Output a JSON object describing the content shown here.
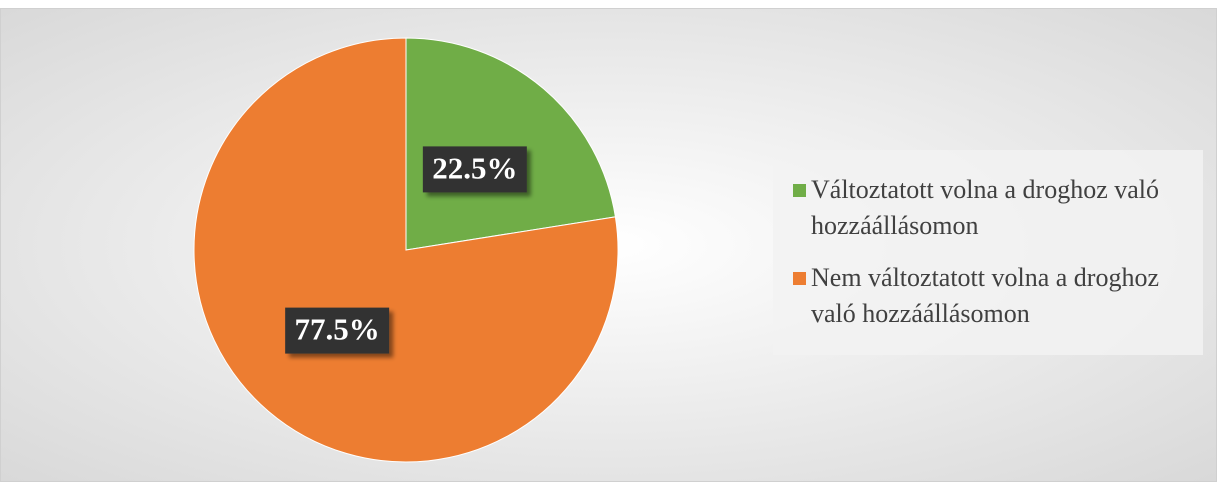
{
  "chart_data": {
    "type": "pie",
    "categories": [
      "Változtatott volna a droghoz való hozzáállásomon",
      "Nem változtatott volna a droghoz való hozzáállásomon"
    ],
    "values": [
      22.5,
      77.5
    ],
    "value_labels": [
      "22.5%",
      "77.5%"
    ],
    "colors": [
      "#70ad47",
      "#ed7d31"
    ],
    "legend": "right"
  }
}
